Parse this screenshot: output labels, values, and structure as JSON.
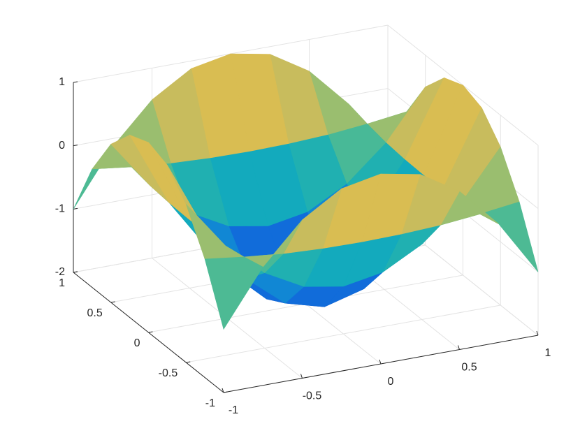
{
  "chart_data": {
    "type": "surface",
    "x": [
      -1,
      -0.75,
      -0.5,
      -0.25,
      0,
      0.25,
      0.5,
      0.75,
      1
    ],
    "y": [
      -1,
      -0.75,
      -0.5,
      -0.25,
      0,
      0.25,
      0.5,
      0.75,
      1
    ],
    "z": [
      [
        -1,
        -0.13,
        0.5,
        0.88,
        1,
        0.88,
        0.5,
        -0.13,
        -1
      ],
      [
        -0.13,
        -0.21,
        -0.27,
        -0.3,
        -0.31,
        -0.3,
        -0.27,
        -0.21,
        -0.13
      ],
      [
        0.5,
        -0.27,
        -0.81,
        -1.14,
        -1.25,
        -1.14,
        -0.81,
        -0.27,
        0.5
      ],
      [
        0.88,
        -0.3,
        -1.14,
        -1.64,
        -1.81,
        -1.64,
        -1.14,
        -0.3,
        0.88
      ],
      [
        1,
        -0.31,
        -1.25,
        -1.81,
        -2,
        -1.81,
        -1.25,
        -0.31,
        1
      ],
      [
        0.88,
        -0.3,
        -1.14,
        -1.64,
        -1.81,
        -1.64,
        -1.14,
        -0.3,
        0.88
      ],
      [
        0.5,
        -0.27,
        -0.81,
        -1.14,
        -1.25,
        -1.14,
        -0.81,
        -0.27,
        0.5
      ],
      [
        -0.13,
        -0.21,
        -0.27,
        -0.3,
        -0.31,
        -0.3,
        -0.27,
        -0.21,
        -0.13
      ],
      [
        -1,
        -0.13,
        0.5,
        0.88,
        1,
        0.88,
        0.5,
        -0.13,
        -1
      ]
    ],
    "xlim": [
      -1,
      1
    ],
    "ylim": [
      -1,
      1
    ],
    "zlim": [
      -2,
      1
    ],
    "xticks": [
      -1,
      -0.5,
      0,
      0.5,
      1
    ],
    "yticks": [
      -1,
      -0.5,
      0,
      0.5,
      1
    ],
    "zticks": [
      -2,
      -1,
      0,
      1
    ],
    "grid": true,
    "colormap": [
      "#352a87",
      "#0f5cdd",
      "#1481d6",
      "#06a4ca",
      "#2eb7a4",
      "#87bf77",
      "#d1bb59",
      "#fec832",
      "#f9fb0e"
    ]
  }
}
